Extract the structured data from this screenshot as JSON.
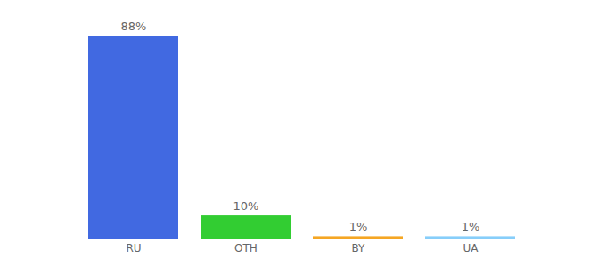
{
  "chart_data": {
    "type": "bar",
    "categories": [
      "RU",
      "OTH",
      "BY",
      "UA"
    ],
    "values": [
      88,
      10,
      1,
      1
    ],
    "value_labels": [
      "88%",
      "10%",
      "1%",
      "1%"
    ],
    "colors": [
      "#4169e1",
      "#32cd32",
      "#f5a623",
      "#87cefa"
    ],
    "ylim": [
      0,
      88
    ],
    "data_labels": true,
    "tick_labels": "x",
    "grid": false
  }
}
